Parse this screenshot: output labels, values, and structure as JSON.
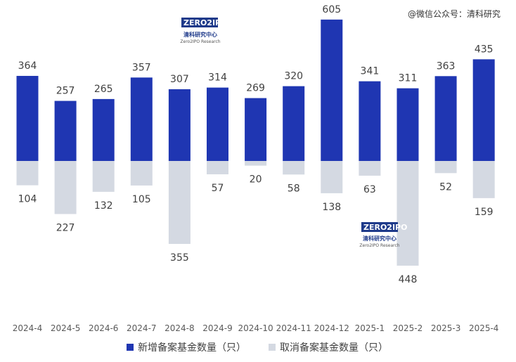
{
  "watermark": "@微信公众号：清科研究",
  "logo": {
    "brand": "ZERO2IPO",
    "cn": "清科研究中心",
    "en": "Zero2IPO Research"
  },
  "chart_data": {
    "type": "bar",
    "categories": [
      "2024-4",
      "2024-5",
      "2024-6",
      "2024-7",
      "2024-8",
      "2024-9",
      "2024-10",
      "2024-11",
      "2024-12",
      "2025-1",
      "2025-2",
      "2025-3",
      "2025-4"
    ],
    "series": [
      {
        "name": "新增备案基金数量（只）",
        "values": [
          364,
          257,
          265,
          357,
          307,
          314,
          269,
          320,
          605,
          341,
          311,
          363,
          435
        ],
        "color": "#1f36b2"
      },
      {
        "name": "取消备案基金数量（只）",
        "values": [
          104,
          227,
          132,
          105,
          355,
          57,
          20,
          58,
          138,
          63,
          448,
          52,
          159
        ],
        "color": "#d4d9e2"
      }
    ],
    "layout": "diverging",
    "legend_position": "bottom",
    "grid": false
  }
}
